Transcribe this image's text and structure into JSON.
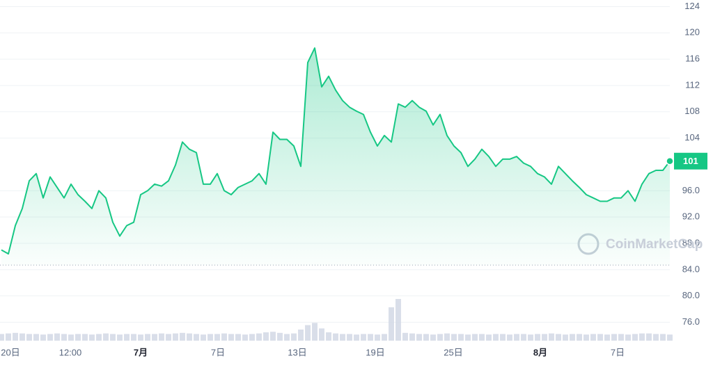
{
  "chart_data": {
    "type": "line",
    "watermark": "CoinMarketCap",
    "last_price_label": "101",
    "color": "#16c784",
    "reference_line": 84.7,
    "grid": true,
    "x": [
      0,
      1,
      2,
      3,
      4,
      5,
      6,
      7,
      8,
      9,
      10,
      11,
      12,
      13,
      14,
      15,
      16,
      17,
      18,
      19,
      20,
      21,
      22,
      23,
      24,
      25,
      26,
      27,
      28,
      29,
      30,
      31,
      32,
      33,
      34,
      35,
      36,
      37,
      38,
      39,
      40,
      41,
      42,
      43,
      44,
      45,
      46,
      47,
      48,
      49,
      50,
      51,
      52,
      53,
      54,
      55,
      56,
      57,
      58,
      59,
      60,
      61,
      62,
      63,
      64,
      65,
      66,
      67,
      68,
      69,
      70,
      71,
      72,
      73,
      74,
      75,
      76,
      77,
      78,
      79,
      80,
      81,
      82,
      83,
      84,
      85,
      86,
      87,
      88,
      89,
      90,
      91,
      92,
      93,
      94,
      95,
      96
    ],
    "values": [
      87.0,
      86.4,
      90.7,
      93.3,
      97.5,
      98.6,
      94.9,
      98.1,
      96.5,
      94.9,
      97.0,
      95.4,
      94.4,
      93.3,
      96.0,
      94.9,
      91.2,
      89.1,
      90.7,
      91.2,
      95.4,
      96.0,
      97.0,
      96.7,
      97.5,
      99.9,
      103.4,
      102.3,
      101.8,
      97.0,
      97.0,
      98.6,
      96.0,
      95.4,
      96.5,
      97.0,
      97.5,
      98.6,
      97.0,
      104.9,
      103.8,
      103.8,
      102.8,
      99.7,
      115.5,
      117.7,
      111.8,
      113.4,
      111.3,
      109.7,
      108.7,
      108.1,
      107.6,
      104.9,
      102.8,
      104.4,
      103.4,
      109.2,
      108.7,
      109.7,
      108.7,
      108.1,
      106.0,
      107.6,
      104.4,
      102.8,
      101.8,
      99.7,
      100.8,
      102.3,
      101.2,
      99.7,
      100.8,
      100.8,
      101.2,
      100.2,
      99.7,
      98.6,
      98.1,
      97.0,
      99.7,
      98.6,
      97.5,
      96.5,
      95.4,
      94.9,
      94.4,
      94.4,
      94.9,
      94.9,
      96.0,
      94.4,
      97.0,
      98.6,
      99.1,
      99.1,
      100.5
    ],
    "volume": [
      12,
      13,
      14,
      13,
      12,
      12,
      11,
      12,
      13,
      12,
      11,
      12,
      12,
      11,
      12,
      13,
      12,
      11,
      12,
      12,
      11,
      12,
      12,
      13,
      12,
      13,
      14,
      13,
      12,
      11,
      12,
      12,
      13,
      12,
      12,
      11,
      12,
      13,
      15,
      16,
      14,
      12,
      13,
      20,
      28,
      32,
      22,
      15,
      13,
      12,
      12,
      11,
      12,
      12,
      11,
      12,
      60,
      75,
      14,
      13,
      12,
      12,
      11,
      12,
      13,
      12,
      12,
      11,
      12,
      12,
      11,
      12,
      12,
      11,
      12,
      12,
      11,
      12,
      12,
      13,
      12,
      11,
      12,
      12,
      11,
      12,
      12,
      11,
      12,
      12,
      11,
      12,
      13,
      13,
      12,
      12,
      11
    ],
    "volume_lim": [
      0,
      100
    ],
    "xlim": [
      0,
      96
    ],
    "xticks": [
      {
        "value": 1.3,
        "label": "20日"
      },
      {
        "value": 9.9,
        "label": "12:00"
      },
      {
        "value": 20,
        "label": "7月",
        "bold": true
      },
      {
        "value": 31.1,
        "label": "7日"
      },
      {
        "value": 42.5,
        "label": "13日"
      },
      {
        "value": 53.7,
        "label": "19日"
      },
      {
        "value": 64.9,
        "label": "25日"
      },
      {
        "value": 77.4,
        "label": "8月",
        "bold": true
      },
      {
        "value": 88.5,
        "label": "7日"
      }
    ],
    "ylim": [
      73.2,
      125
    ],
    "yticks": [
      124,
      120,
      116,
      112,
      108,
      104,
      {
        "value": 96,
        "label": "96.0"
      },
      {
        "value": 92,
        "label": "92.0"
      },
      {
        "value": 88,
        "label": "88.0"
      },
      {
        "value": 84,
        "label": "84.0"
      },
      {
        "value": 80,
        "label": "80.0"
      },
      {
        "value": 76,
        "label": "76.0"
      }
    ]
  }
}
